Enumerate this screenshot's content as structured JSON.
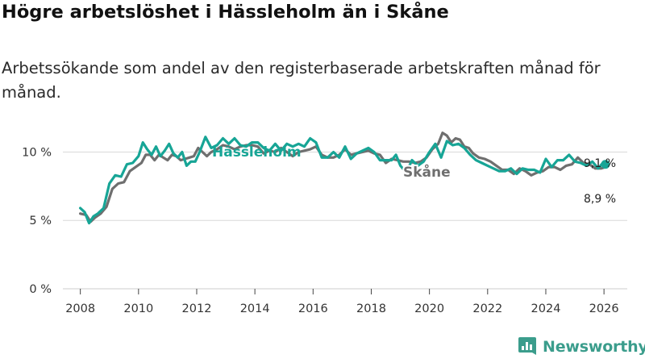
{
  "title": "Högre arbetslöshet i Hässleholm än i Skåne",
  "subtitle": "Arbetssökande som andel av den registerbaserade arbetskraften månad för månad.",
  "brand": {
    "name": "Newsworthy",
    "icon": "bar-chart-icon"
  },
  "colors": {
    "hassleholm": "#17a596",
    "skane": "#6f6f6f",
    "grid": "#d9d9d9",
    "brand": "#3b9d8c"
  },
  "chart_data": {
    "type": "line",
    "title": "Högre arbetslöshet i Hässleholm än i Skåne",
    "xlabel": "",
    "ylabel": "",
    "xlim": [
      2007.4,
      2026.8
    ],
    "ylim": [
      0,
      10.5
    ],
    "x_ticks": [
      2008,
      2010,
      2012,
      2014,
      2016,
      2018,
      2020,
      2022,
      2024,
      2026
    ],
    "x_tick_labels": [
      "2008",
      "2010",
      "2012",
      "2014",
      "2016",
      "2018",
      "2020",
      "2022",
      "2024",
      "2026"
    ],
    "y_ticks": [
      0,
      5,
      10
    ],
    "y_tick_labels": [
      "0 %",
      "5 %",
      "10 %"
    ],
    "grid": true,
    "series": [
      {
        "name": "Skåne",
        "label": "Skåne",
        "end_label": "8,9 %",
        "x": [
          2008.0,
          2008.2,
          2008.35,
          2008.5,
          2008.7,
          2008.9,
          2009.1,
          2009.3,
          2009.5,
          2009.7,
          2009.9,
          2010.1,
          2010.25,
          2010.4,
          2010.55,
          2010.7,
          2010.85,
          2011.0,
          2011.15,
          2011.3,
          2011.45,
          2011.6,
          2011.75,
          2011.9,
          2012.05,
          2012.2,
          2012.35,
          2012.5,
          2012.7,
          2012.9,
          2013.1,
          2013.3,
          2013.5,
          2013.7,
          2013.9,
          2014.1,
          2014.3,
          2014.5,
          2014.7,
          2014.9,
          2015.1,
          2015.3,
          2015.5,
          2015.7,
          2015.9,
          2016.1,
          2016.3,
          2016.5,
          2016.7,
          2016.9,
          2017.1,
          2017.3,
          2017.5,
          2017.7,
          2017.9,
          2018.1,
          2018.3,
          2018.5,
          2018.7,
          2018.9,
          2019.1,
          2019.3,
          2019.5,
          2019.7,
          2019.9,
          2020.1,
          2020.3,
          2020.45,
          2020.6,
          2020.75,
          2020.9,
          2021.05,
          2021.2,
          2021.35,
          2021.5,
          2021.7,
          2021.9,
          2022.1,
          2022.3,
          2022.5,
          2022.7,
          2022.9,
          2023.1,
          2023.3,
          2023.5,
          2023.7,
          2023.9,
          2024.1,
          2024.3,
          2024.5,
          2024.7,
          2024.9,
          2025.1,
          2025.3,
          2025.5,
          2025.7,
          2025.9,
          2026.05
        ],
        "values": [
          5.5,
          5.4,
          4.9,
          5.2,
          5.5,
          6.0,
          7.3,
          7.7,
          7.8,
          8.6,
          8.9,
          9.2,
          9.8,
          9.8,
          9.4,
          9.8,
          9.6,
          9.4,
          9.8,
          9.7,
          9.4,
          9.5,
          9.6,
          9.7,
          10.3,
          10.0,
          9.7,
          10.0,
          10.2,
          10.5,
          10.4,
          10.2,
          10.4,
          10.5,
          10.5,
          10.4,
          9.9,
          10.1,
          10.0,
          10.3,
          10.0,
          9.7,
          10.0,
          10.1,
          10.2,
          10.4,
          9.8,
          9.6,
          9.6,
          9.8,
          10.2,
          9.8,
          9.9,
          10.0,
          10.1,
          9.9,
          9.8,
          9.2,
          9.5,
          9.4,
          9.3,
          9.3,
          9.2,
          9.3,
          9.6,
          10.2,
          10.6,
          11.4,
          11.2,
          10.7,
          11.0,
          10.9,
          10.4,
          10.3,
          9.9,
          9.6,
          9.5,
          9.3,
          9.0,
          8.7,
          8.7,
          8.4,
          8.8,
          8.6,
          8.3,
          8.5,
          8.6,
          8.9,
          8.9,
          8.7,
          9.0,
          9.1,
          9.6,
          9.2,
          9.1,
          8.8,
          8.8,
          8.9
        ]
      },
      {
        "name": "Hässleholm",
        "label": "Hässleholm",
        "end_label": "9,1 %",
        "x": [
          2008.0,
          2008.15,
          2008.3,
          2008.45,
          2008.6,
          2008.8,
          2009.0,
          2009.2,
          2009.4,
          2009.6,
          2009.8,
          2010.0,
          2010.15,
          2010.3,
          2010.45,
          2010.6,
          2010.75,
          2010.9,
          2011.05,
          2011.2,
          2011.35,
          2011.5,
          2011.65,
          2011.8,
          2011.95,
          2012.1,
          2012.3,
          2012.5,
          2012.7,
          2012.9,
          2013.1,
          2013.3,
          2013.5,
          2013.7,
          2013.9,
          2014.1,
          2014.3,
          2014.5,
          2014.7,
          2014.9,
          2015.1,
          2015.3,
          2015.5,
          2015.7,
          2015.9,
          2016.1,
          2016.3,
          2016.5,
          2016.7,
          2016.9,
          2017.1,
          2017.3,
          2017.5,
          2017.7,
          2017.9,
          2018.1,
          2018.3,
          2018.5,
          2018.7,
          2018.85,
          2019.0,
          2019.2,
          2019.4,
          2019.6,
          2019.8,
          2020.0,
          2020.2,
          2020.4,
          2020.6,
          2020.8,
          2021.0,
          2021.2,
          2021.4,
          2021.6,
          2021.8,
          2022.0,
          2022.2,
          2022.4,
          2022.6,
          2022.8,
          2023.0,
          2023.2,
          2023.4,
          2023.6,
          2023.8,
          2024.0,
          2024.2,
          2024.4,
          2024.6,
          2024.8,
          2025.0,
          2025.2,
          2025.4,
          2025.6,
          2025.8,
          2026.0,
          2026.05
        ],
        "values": [
          5.9,
          5.6,
          4.8,
          5.3,
          5.5,
          5.9,
          7.7,
          8.3,
          8.2,
          9.1,
          9.2,
          9.7,
          10.7,
          10.2,
          9.8,
          10.4,
          9.7,
          10.1,
          10.6,
          9.9,
          9.6,
          10.0,
          9.0,
          9.3,
          9.3,
          10.0,
          11.1,
          10.3,
          10.5,
          11.0,
          10.6,
          11.0,
          10.5,
          10.4,
          10.7,
          10.7,
          10.3,
          10.1,
          10.6,
          10.1,
          10.6,
          10.4,
          10.6,
          10.4,
          11.0,
          10.7,
          9.6,
          9.6,
          10.0,
          9.6,
          10.4,
          9.5,
          9.9,
          10.1,
          10.3,
          10.0,
          9.4,
          9.4,
          9.4,
          9.8,
          9.0,
          8.5,
          9.4,
          9.0,
          9.3,
          10.0,
          10.6,
          9.6,
          10.8,
          10.5,
          10.6,
          10.3,
          9.8,
          9.4,
          9.2,
          9.0,
          8.8,
          8.6,
          8.6,
          8.8,
          8.4,
          8.8,
          8.7,
          8.7,
          8.5,
          9.5,
          8.9,
          9.4,
          9.4,
          9.8,
          9.3,
          9.2,
          9.0,
          9.3,
          8.8,
          9.3,
          9.1
        ]
      }
    ]
  }
}
